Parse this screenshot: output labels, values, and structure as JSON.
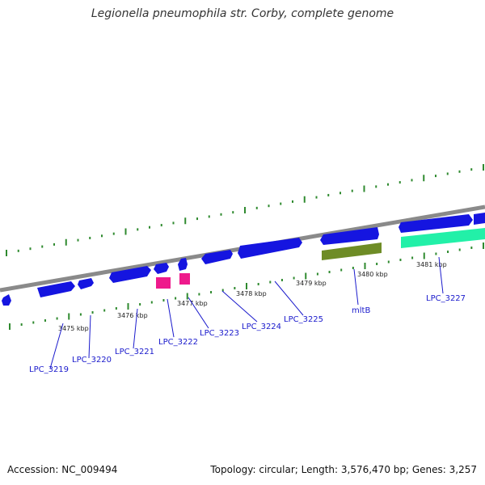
{
  "title": "Legionella pneumophila str. Corby, complete genome",
  "footer": {
    "accession": "Accession: NC_009494",
    "summary": "Topology: circular; Length: 3,576,470 bp; Genes: 3,257"
  },
  "colors": {
    "backbone": "#8a8a8a",
    "tick": "#2f8a2f",
    "cds": "#1515e0",
    "rna": "#ee1a8c",
    "mltB": "#6e8c26",
    "lpc3227": "#22f0a8",
    "label": "#1a1acc"
  },
  "scale_ticks": [
    "3475 kbp",
    "3476 kbp",
    "3477 kbp",
    "3478 kbp",
    "3479 kbp",
    "3480 kbp",
    "3481 kbp"
  ],
  "gene_labels": [
    "LPC_3219",
    "LPC_3220",
    "LPC_3221",
    "LPC_3222",
    "LPC_3223",
    "LPC_3224",
    "LPC_3225",
    "mltB",
    "LPC_3227"
  ]
}
